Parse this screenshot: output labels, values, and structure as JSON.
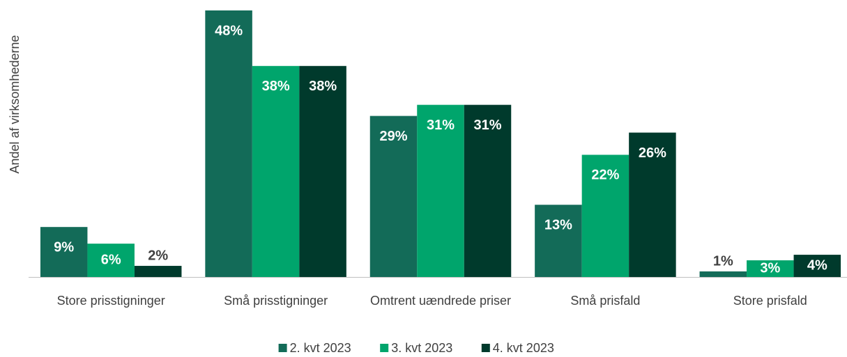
{
  "chart_data": {
    "type": "bar",
    "y_label": "Andel af virksomhederne",
    "categories": [
      "Store prisstigninger",
      "Små prisstigninger",
      "Omtrent uændrede priser",
      "Små prisfald",
      "Store prisfald"
    ],
    "series": [
      {
        "name": "2. kvt 2023",
        "color": "#136b58",
        "values": [
          9,
          48,
          29,
          13,
          1
        ],
        "value_labels": [
          "9%",
          "48%",
          "29%",
          "13%",
          "1%"
        ]
      },
      {
        "name": "3. kvt 2023",
        "color": "#00a56c",
        "values": [
          6,
          38,
          31,
          22,
          3
        ],
        "value_labels": [
          "6%",
          "38%",
          "31%",
          "22%",
          "3%"
        ]
      },
      {
        "name": "4. kvt 2023",
        "color": "#003a2c",
        "values": [
          2,
          38,
          31,
          26,
          4
        ],
        "value_labels": [
          "2%",
          "38%",
          "31%",
          "26%",
          "4%"
        ]
      }
    ],
    "ylim": [
      0,
      48
    ],
    "legend": "bottom"
  }
}
